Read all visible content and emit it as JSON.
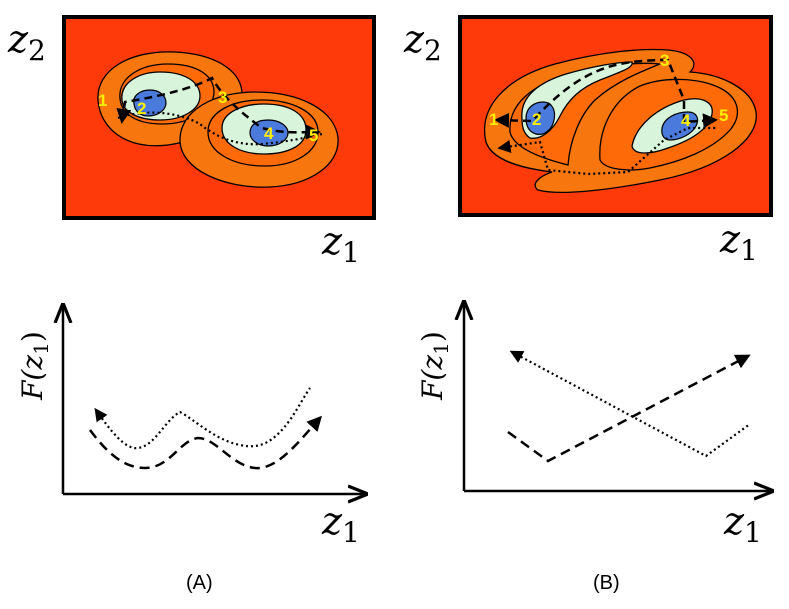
{
  "colors": {
    "background": "#ff3a0a",
    "ring_outer": "#f7760e",
    "ring_middle": "#ff6a08",
    "core_light": "#d8f5dc",
    "core_dark": "#4a7bdc",
    "point_label": "#ffee00"
  },
  "panel_a": {
    "label": "(A)",
    "top_y_axis": "z",
    "top_y_sub": "2",
    "top_x_axis": "z",
    "top_x_sub": "1",
    "points": [
      "1",
      "2",
      "3",
      "4",
      "5"
    ],
    "bottom_y_axis": "F(z",
    "bottom_y_sub": "1",
    "bottom_y_close": ")",
    "bottom_x_axis": "z",
    "bottom_x_sub": "1"
  },
  "panel_b": {
    "label": "(B)",
    "top_y_axis": "z",
    "top_y_sub": "2",
    "top_x_axis": "z",
    "top_x_sub": "1",
    "points": [
      "1",
      "2",
      "3",
      "4",
      "5"
    ],
    "bottom_y_axis": "F(z",
    "bottom_y_sub": "1",
    "bottom_y_close": ")",
    "bottom_x_axis": "z",
    "bottom_x_sub": "1"
  }
}
